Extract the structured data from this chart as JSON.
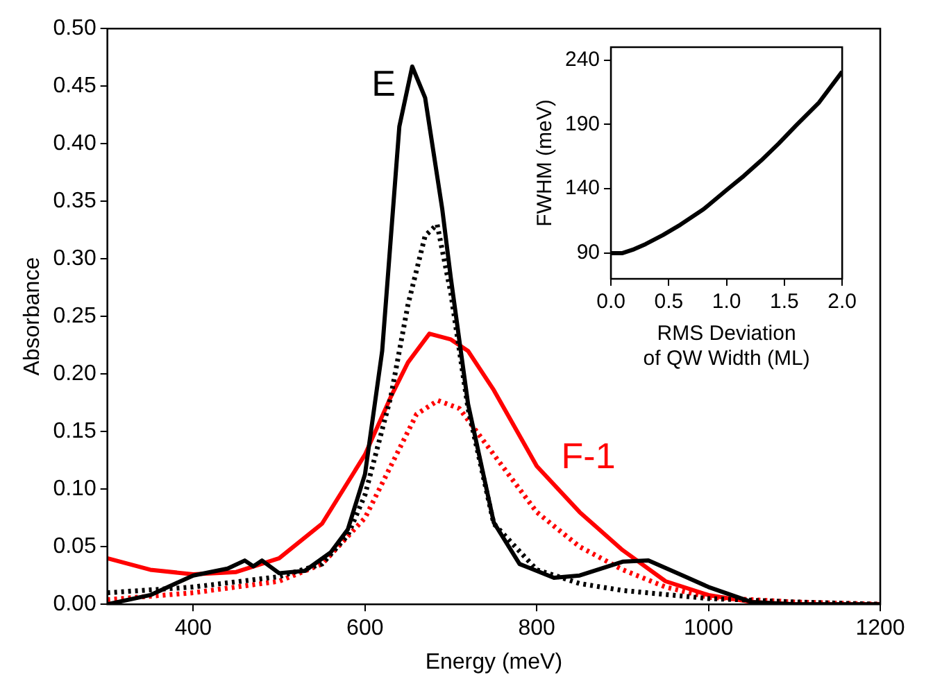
{
  "chart_data": [
    {
      "type": "line",
      "xlabel": "Energy (meV)",
      "ylabel": "Absorbance",
      "xlim": [
        300,
        1200
      ],
      "xticks": [
        400,
        600,
        800,
        1000,
        1200
      ],
      "ylim": [
        0,
        0.5
      ],
      "yticks": [
        {
          "value": 0,
          "label": "0.00"
        },
        {
          "value": 0.05,
          "label": "0.05"
        },
        {
          "value": 0.1,
          "label": "0.10"
        },
        {
          "value": 0.15,
          "label": "0.15"
        },
        {
          "value": 0.2,
          "label": "0.20"
        },
        {
          "value": 0.25,
          "label": "0.25"
        },
        {
          "value": 0.3,
          "label": "0.30"
        },
        {
          "value": 0.35,
          "label": "0.35"
        },
        {
          "value": 0.4,
          "label": "0.40"
        },
        {
          "value": 0.45,
          "label": "0.45"
        },
        {
          "value": 0.5,
          "label": "0.50"
        }
      ],
      "grid": false,
      "legend": false,
      "marker": "none",
      "series": [
        {
          "name": "E",
          "color": "#000000",
          "line_style": "solid",
          "x": [
            300,
            350,
            400,
            440,
            460,
            470,
            480,
            500,
            530,
            560,
            580,
            600,
            620,
            640,
            655,
            670,
            690,
            700,
            720,
            750,
            780,
            820,
            850,
            900,
            930,
            970,
            1000,
            1050,
            1100,
            1200
          ],
          "values": [
            0,
            0.008,
            0.025,
            0.031,
            0.038,
            0.033,
            0.038,
            0.027,
            0.029,
            0.045,
            0.065,
            0.113,
            0.22,
            0.415,
            0.467,
            0.44,
            0.343,
            0.283,
            0.174,
            0.071,
            0.035,
            0.023,
            0.025,
            0.037,
            0.038,
            0.025,
            0.015,
            0.002,
            0,
            0
          ]
        },
        {
          "color": "#000000",
          "line_style": "dotted",
          "x": [
            300,
            400,
            500,
            550,
            580,
            600,
            630,
            650,
            670,
            684,
            700,
            720,
            750,
            800,
            850,
            900,
            1000,
            1100,
            1200
          ],
          "values": [
            0.01,
            0.015,
            0.024,
            0.035,
            0.06,
            0.095,
            0.18,
            0.26,
            0.32,
            0.33,
            0.27,
            0.17,
            0.07,
            0.03,
            0.018,
            0.012,
            0.005,
            0.002,
            0
          ]
        },
        {
          "name": "F-1",
          "color": "#ff0000",
          "line_style": "solid",
          "x": [
            300,
            350,
            400,
            450,
            500,
            550,
            600,
            630,
            650,
            675,
            700,
            720,
            750,
            800,
            850,
            900,
            950,
            1000,
            1050,
            1100,
            1200
          ],
          "values": [
            0.04,
            0.03,
            0.026,
            0.028,
            0.04,
            0.07,
            0.13,
            0.18,
            0.21,
            0.235,
            0.23,
            0.22,
            0.186,
            0.12,
            0.08,
            0.047,
            0.02,
            0.008,
            0.002,
            0,
            0
          ]
        },
        {
          "color": "#ff0000",
          "line_style": "dotted",
          "x": [
            300,
            400,
            500,
            550,
            600,
            630,
            660,
            685,
            710,
            750,
            800,
            850,
            900,
            950,
            1000,
            1100,
            1200
          ],
          "values": [
            0.004,
            0.01,
            0.02,
            0.035,
            0.075,
            0.12,
            0.165,
            0.177,
            0.17,
            0.13,
            0.08,
            0.05,
            0.03,
            0.015,
            0.006,
            0.002,
            0
          ]
        }
      ]
    },
    {
      "type": "line",
      "xlabel": "RMS Deviation\nof QW Width (ML)",
      "ylabel": "FWHM (meV)",
      "xlim": [
        0,
        2
      ],
      "xticks": [
        {
          "value": 0,
          "label": "0.0"
        },
        {
          "value": 0.5,
          "label": "0.5"
        },
        {
          "value": 1,
          "label": "1.0"
        },
        {
          "value": 1.5,
          "label": "1.5"
        },
        {
          "value": 2,
          "label": "2.0"
        }
      ],
      "ylim": [
        70,
        250
      ],
      "yticks": [
        90,
        140,
        190,
        240
      ],
      "grid": false,
      "legend": false,
      "marker": "none",
      "series": [
        {
          "color": "#000000",
          "line_style": "solid",
          "x": [
            0,
            0.1,
            0.2,
            0.3,
            0.45,
            0.6,
            0.8,
            1.0,
            1.15,
            1.3,
            1.45,
            1.6,
            1.8,
            2.0
          ],
          "values": [
            90,
            90,
            93,
            97,
            104,
            112,
            124,
            139,
            150,
            162,
            175,
            189,
            207,
            231
          ]
        }
      ]
    }
  ]
}
